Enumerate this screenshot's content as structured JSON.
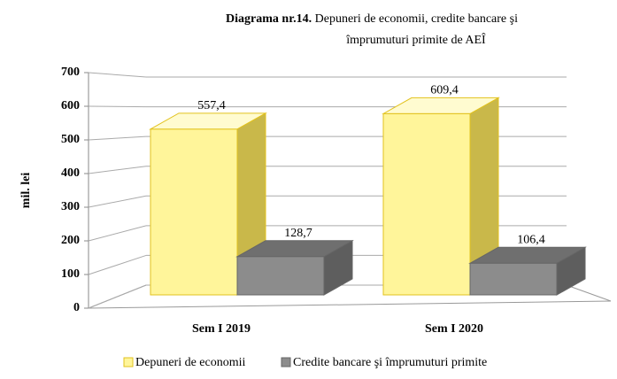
{
  "chart_data": {
    "type": "bar3d",
    "title_label": "Diagrama nr.14.",
    "title": [
      "Depuneri de economii, credite bancare şi",
      "împrumuturi primite de AEÎ"
    ],
    "ylabel": "mil. lei",
    "categories": [
      "Sem I 2019",
      "Sem I 2020"
    ],
    "series": [
      {
        "name": "Depuneri de economii",
        "color": "#fff59a",
        "values": [
          557.4,
          609.4
        ],
        "value_labels": [
          "557,4",
          "609,4"
        ]
      },
      {
        "name": "Credite bancare şi împrumuturi primite",
        "color": "#8c8c8c",
        "values": [
          128.7,
          106.4
        ],
        "value_labels": [
          "128,7",
          "106,4"
        ]
      }
    ],
    "ylim": [
      0,
      700
    ],
    "yticks": [
      0,
      100,
      200,
      300,
      400,
      500,
      600,
      700
    ],
    "grid": true
  }
}
